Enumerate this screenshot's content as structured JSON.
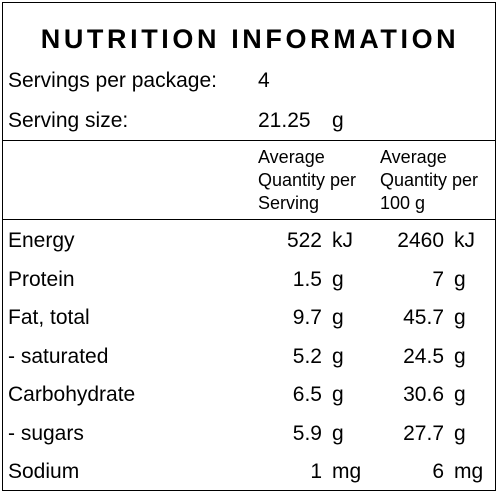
{
  "title": "NUTRITION INFORMATION",
  "servings": {
    "label": "Servings per package:",
    "value": "4"
  },
  "serving_size": {
    "label": "Serving size:",
    "value": "21.25",
    "unit": "g"
  },
  "columns": {
    "per_serving": [
      "Average",
      "Quantity per",
      "Serving"
    ],
    "per_100g": [
      "Average",
      "Quantity per",
      "100 g"
    ]
  },
  "rows": [
    {
      "name": "Energy",
      "serv": "522",
      "serv_unit": "kJ",
      "per100": "2460",
      "per100_unit": "kJ"
    },
    {
      "name": "Protein",
      "serv": "1.5",
      "serv_unit": "g",
      "per100": "7",
      "per100_unit": "g"
    },
    {
      "name": "Fat, total",
      "serv": "9.7",
      "serv_unit": "g",
      "per100": "45.7",
      "per100_unit": "g"
    },
    {
      "name": "- saturated",
      "serv": "5.2",
      "serv_unit": "g",
      "per100": "24.5",
      "per100_unit": "g"
    },
    {
      "name": "Carbohydrate",
      "serv": "6.5",
      "serv_unit": "g",
      "per100": "30.6",
      "per100_unit": "g"
    },
    {
      "name": "- sugars",
      "serv": "5.9",
      "serv_unit": "g",
      "per100": "27.7",
      "per100_unit": "g"
    },
    {
      "name": "Sodium",
      "serv": "1",
      "serv_unit": "mg",
      "per100": "6",
      "per100_unit": "mg"
    }
  ]
}
